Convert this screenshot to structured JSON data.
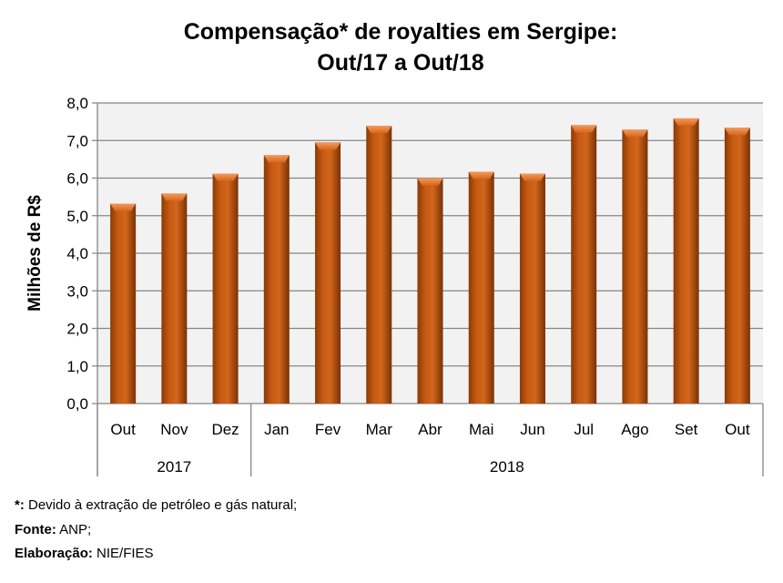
{
  "chart_data": {
    "type": "bar",
    "title": "Compensação* de royalties em Sergipe:",
    "subtitle": "Out/17 a Out/18",
    "ylabel": "Milhões de R$",
    "xlabel": "",
    "ylim": [
      0,
      8
    ],
    "yticks": [
      "0,0",
      "1,0",
      "2,0",
      "3,0",
      "4,0",
      "5,0",
      "6,0",
      "7,0",
      "8,0"
    ],
    "categories": [
      "Out",
      "Nov",
      "Dez",
      "Jan",
      "Fev",
      "Mar",
      "Abr",
      "Mai",
      "Jun",
      "Jul",
      "Ago",
      "Set",
      "Out"
    ],
    "values": [
      5.32,
      5.59,
      6.12,
      6.61,
      6.95,
      7.39,
      6.0,
      6.17,
      6.12,
      7.41,
      7.29,
      7.59,
      7.34
    ],
    "groups": [
      {
        "label": "2017",
        "count": 3
      },
      {
        "label": "2018",
        "count": 10
      }
    ],
    "grid": true,
    "bar_color": "#c55a11"
  },
  "footnotes": [
    {
      "key": "*:",
      "text": " Devido à extração de petróleo e gás natural;"
    },
    {
      "key": "Fonte:",
      "text": " ANP;"
    },
    {
      "key": "Elaboração:",
      "text": " NIE/FIES"
    }
  ]
}
